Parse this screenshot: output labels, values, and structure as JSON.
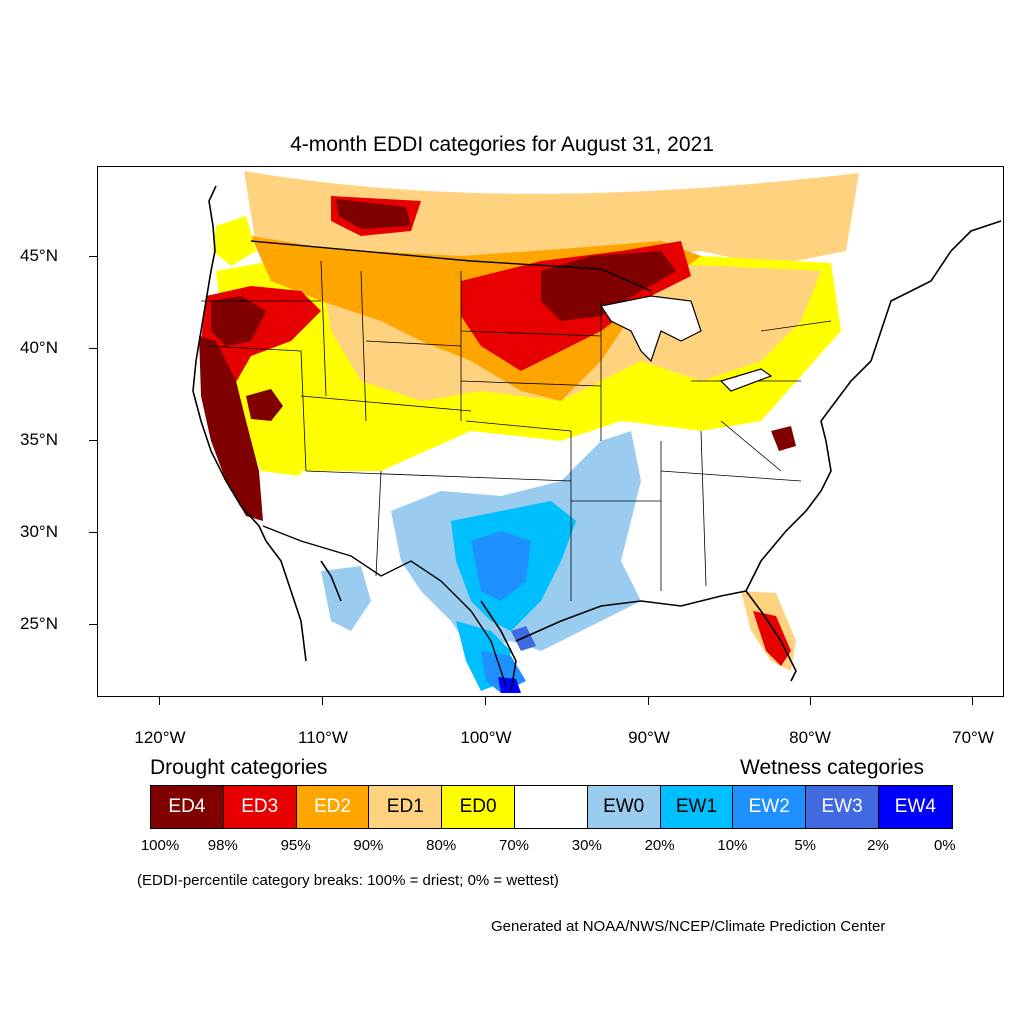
{
  "title": "4-month EDDI categories for August 31, 2021",
  "y_ticks": [
    "45°N",
    "40°N",
    "35°N",
    "30°N",
    "25°N"
  ],
  "x_ticks": [
    "120°W",
    "110°W",
    "100°W",
    "90°W",
    "80°W",
    "70°W"
  ],
  "legend": {
    "drought_heading": "Drought categories",
    "wetness_heading": "Wetness categories",
    "categories": [
      {
        "label": "ED4",
        "color": "#800000",
        "text_color": "#ffffff"
      },
      {
        "label": "ED3",
        "color": "#e60000",
        "text_color": "#ffffff"
      },
      {
        "label": "ED2",
        "color": "#ffa500",
        "text_color": "#ffffff"
      },
      {
        "label": "ED1",
        "color": "#ffd27f",
        "text_color": "#000000"
      },
      {
        "label": "ED0",
        "color": "#ffff00",
        "text_color": "#000000"
      },
      {
        "label": "",
        "color": "#ffffff",
        "text_color": "#000000"
      },
      {
        "label": "EW0",
        "color": "#99ccee",
        "text_color": "#000000"
      },
      {
        "label": "EW1",
        "color": "#00bfff",
        "text_color": "#000000"
      },
      {
        "label": "EW2",
        "color": "#1e90ff",
        "text_color": "#ffffff"
      },
      {
        "label": "EW3",
        "color": "#4169e1",
        "text_color": "#ffffff"
      },
      {
        "label": "EW4",
        "color": "#0000ff",
        "text_color": "#ffffff"
      }
    ],
    "percentiles": [
      "100%",
      "98%",
      "95%",
      "90%",
      "80%",
      "70%",
      "30%",
      "20%",
      "10%",
      "5%",
      "2%",
      "0%"
    ]
  },
  "note": "(EDDI-percentile category breaks: 100% = driest; 0% = wettest)",
  "credit": "Generated at NOAA/NWS/NCEP/Climate Prediction Center"
}
